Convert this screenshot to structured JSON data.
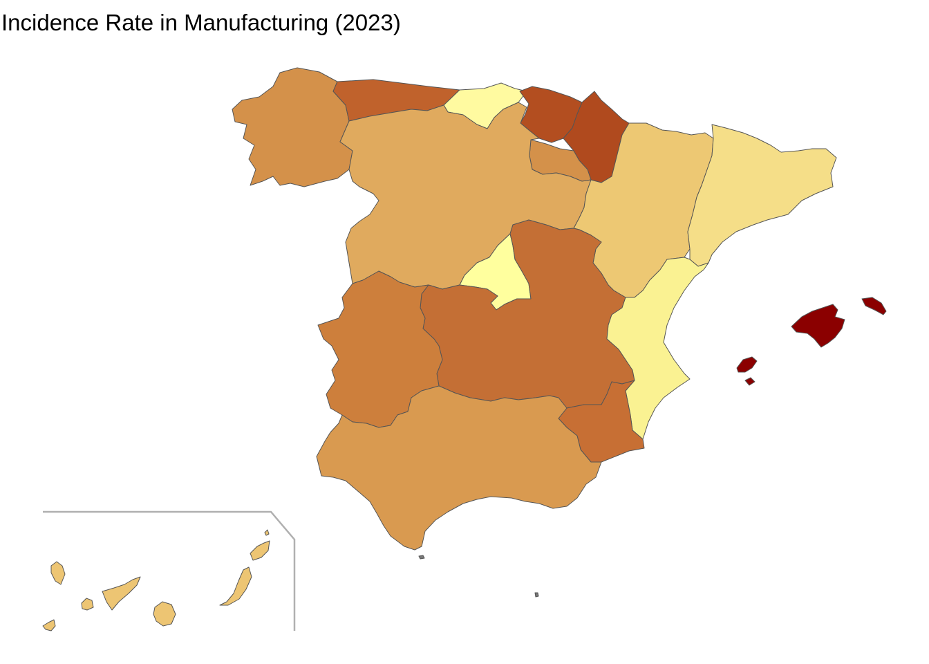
{
  "title": "Incidence Rate in Manufacturing (2023)",
  "map": {
    "stroke_color": "#555555",
    "inset_frame_color": "#b0b0b0",
    "regions": [
      {
        "id": "galicia",
        "color": "#D4914A"
      },
      {
        "id": "asturias",
        "color": "#C0622C"
      },
      {
        "id": "cantabria",
        "color": "#FFFAA0"
      },
      {
        "id": "pais-vasco",
        "color": "#B34E20"
      },
      {
        "id": "navarra",
        "color": "#B04A1E"
      },
      {
        "id": "la-rioja",
        "color": "#D4914A"
      },
      {
        "id": "castilla-y-leon",
        "color": "#E0AA5E"
      },
      {
        "id": "aragon",
        "color": "#EDC873"
      },
      {
        "id": "cataluna",
        "color": "#F5DE88"
      },
      {
        "id": "madrid",
        "color": "#FFFF9E"
      },
      {
        "id": "castilla-la-mancha",
        "color": "#C46F35"
      },
      {
        "id": "extremadura",
        "color": "#CD7F3C"
      },
      {
        "id": "valencia",
        "color": "#FAF292"
      },
      {
        "id": "murcia",
        "color": "#C76F34"
      },
      {
        "id": "andalucia",
        "color": "#D99A50"
      },
      {
        "id": "baleares",
        "color": "#8B0000"
      },
      {
        "id": "canarias",
        "color": "#EDC573"
      },
      {
        "id": "ceuta",
        "color": "#777777"
      },
      {
        "id": "melilla",
        "color": "#777777"
      }
    ]
  }
}
